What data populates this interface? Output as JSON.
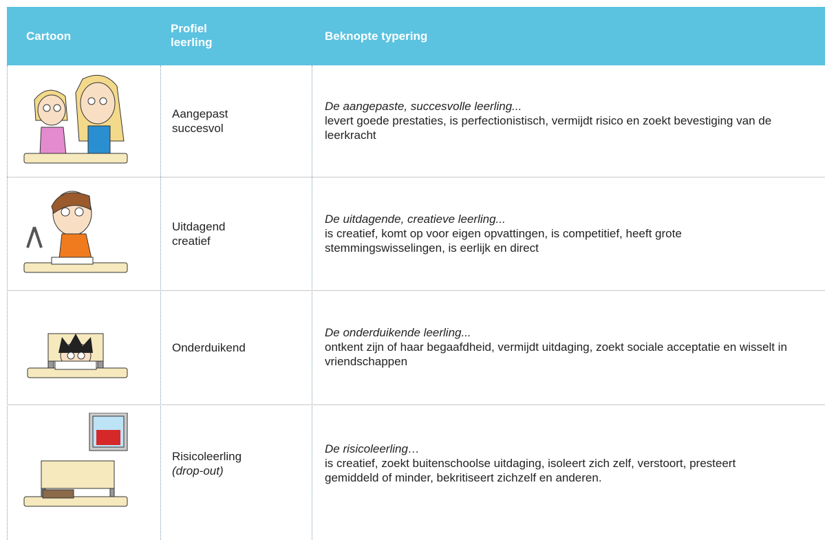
{
  "table": {
    "header": [
      "Cartoon",
      "Profiel leerling",
      "Beknopte typering"
    ],
    "rows": [
      {
        "profile": [
          "Aangepast",
          "succesvol"
        ],
        "lead": "De aangepaste, succesvolle leerling...",
        "body": "levert goede prestaties, is perfectionistisch, vermijdt risico en zoekt bevestiging van de leerkracht"
      },
      {
        "profile": [
          "Uitdagend",
          "creatief"
        ],
        "lead": "De uitdagende, creatieve leerling...",
        "body": "is creatief, komt op voor eigen opvattingen, is competitief, heeft grote stemmingswisselingen, is eerlijk en direct"
      },
      {
        "profile": [
          "Onderduikend"
        ],
        "lead": "De onderduikende leerling...",
        "body": "ontkent zijn of haar begaafdheid, vermijdt uitdaging, zoekt sociale acceptatie en wisselt in vriendschappen"
      },
      {
        "profile": [
          "Risicoleerling"
        ],
        "profile_note": "(drop-out)",
        "lead": "De risicoleerling…",
        "body": "is creatief, zoekt buitenschoolse uitdaging, isoleert zich zelf, verstoort, presteert gemiddeld of minder, bekritiseert zichzelf en anderen."
      }
    ]
  }
}
